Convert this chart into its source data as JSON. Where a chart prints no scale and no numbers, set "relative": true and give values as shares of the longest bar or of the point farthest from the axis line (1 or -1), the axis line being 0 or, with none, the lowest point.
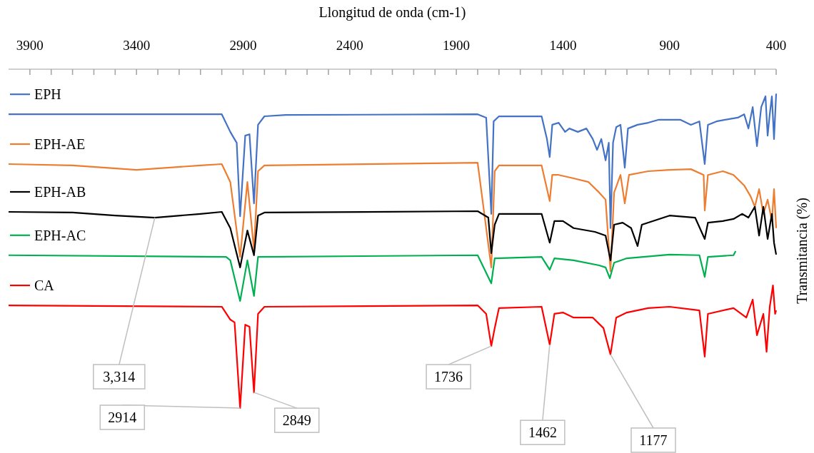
{
  "chart_data": {
    "type": "line",
    "xlabel": "Llongitud de onda (cm-1)",
    "ylabel": "Transmitancia (%)",
    "relative": true,
    "xlim": [
      4000,
      400
    ],
    "xticks": [
      3900,
      {
        "value": 3800,
        "label": null
      },
      {
        "value": 3700,
        "label": null
      },
      {
        "value": 3600,
        "label": null
      },
      {
        "value": 3500,
        "label": null
      },
      3400,
      {
        "value": 3300,
        "label": null
      },
      {
        "value": 3200,
        "label": null
      },
      {
        "value": 3100,
        "label": null
      },
      {
        "value": 3000,
        "label": null
      },
      2900,
      {
        "value": 2800,
        "label": null
      },
      {
        "value": 2700,
        "label": null
      },
      {
        "value": 2600,
        "label": null
      },
      {
        "value": 2500,
        "label": null
      },
      2400,
      {
        "value": 2300,
        "label": null
      },
      {
        "value": 2200,
        "label": null
      },
      {
        "value": 2100,
        "label": null
      },
      {
        "value": 2000,
        "label": null
      },
      1900,
      {
        "value": 1800,
        "label": null
      },
      {
        "value": 1700,
        "label": null
      },
      {
        "value": 1600,
        "label": null
      },
      {
        "value": 1500,
        "label": null
      },
      1400,
      {
        "value": 1300,
        "label": null
      },
      {
        "value": 1200,
        "label": null
      },
      {
        "value": 1100,
        "label": null
      },
      {
        "value": 1000,
        "label": null
      },
      900,
      {
        "value": 800,
        "label": null
      },
      {
        "value": 700,
        "label": null
      },
      {
        "value": 600,
        "label": null
      },
      {
        "value": 500,
        "label": null
      },
      400
    ],
    "tick_labels": "x",
    "grid": false,
    "legend": "left",
    "marker": "none",
    "line_style": "solid",
    "series": [
      {
        "name": "EPH",
        "color": "#4472c4",
        "x": [
          4000,
          3000,
          2960,
          2950,
          2930,
          2914,
          2890,
          2870,
          2849,
          2830,
          2800,
          2700,
          1800,
          1760,
          1736,
          1725,
          1700,
          1500,
          1475,
          1462,
          1450,
          1420,
          1390,
          1370,
          1330,
          1290,
          1260,
          1240,
          1220,
          1200,
          1185,
          1177,
          1165,
          1150,
          1130,
          1110,
          1095,
          1050,
          1000,
          950,
          900,
          850,
          800,
          760,
          735,
          720,
          680,
          620,
          580,
          550,
          530,
          510,
          490,
          470,
          450,
          440,
          430,
          420,
          410,
          400
        ],
        "values": [
          -0.133,
          -0.133,
          -0.185,
          -0.196,
          -0.217,
          -0.434,
          -0.196,
          -0.192,
          -0.396,
          -0.164,
          -0.139,
          -0.135,
          -0.133,
          -0.143,
          -0.427,
          -0.154,
          -0.139,
          -0.139,
          -0.206,
          -0.259,
          -0.164,
          -0.158,
          -0.185,
          -0.175,
          -0.185,
          -0.175,
          -0.206,
          -0.238,
          -0.206,
          -0.269,
          -0.217,
          -0.469,
          -0.217,
          -0.171,
          -0.164,
          -0.291,
          -0.175,
          -0.164,
          -0.158,
          -0.149,
          -0.149,
          -0.149,
          -0.164,
          -0.154,
          -0.28,
          -0.164,
          -0.154,
          -0.147,
          -0.143,
          -0.133,
          -0.175,
          -0.112,
          -0.227,
          -0.112,
          -0.08,
          -0.196,
          -0.133,
          -0.08,
          -0.206,
          -0.072
        ]
      },
      {
        "name": "EPH-AE",
        "color": "#ed7d31",
        "x": [
          4000,
          3700,
          3400,
          3100,
          3000,
          2960,
          2914,
          2880,
          2849,
          2830,
          2800,
          1800,
          1736,
          1720,
          1700,
          1500,
          1462,
          1450,
          1420,
          1350,
          1280,
          1230,
          1200,
          1177,
          1160,
          1130,
          1110,
          1090,
          1000,
          900,
          800,
          740,
          735,
          720,
          650,
          600,
          550,
          520,
          500,
          480,
          460,
          440,
          420,
          410,
          400
        ],
        "values": [
          -0.28,
          -0.284,
          -0.297,
          -0.284,
          -0.28,
          -0.333,
          -0.554,
          -0.333,
          -0.533,
          -0.301,
          -0.284,
          -0.276,
          -0.585,
          -0.301,
          -0.284,
          -0.284,
          -0.389,
          -0.312,
          -0.312,
          -0.322,
          -0.333,
          -0.364,
          -0.385,
          -0.596,
          -0.364,
          -0.312,
          -0.396,
          -0.312,
          -0.301,
          -0.297,
          -0.295,
          -0.312,
          -0.417,
          -0.312,
          -0.301,
          -0.312,
          -0.343,
          -0.375,
          -0.406,
          -0.354,
          -0.427,
          -0.385,
          -0.448,
          -0.354,
          -0.469
        ]
      },
      {
        "name": "EPH-AB",
        "color": "#000000",
        "x": [
          4000,
          3700,
          3500,
          3314,
          3100,
          3000,
          2960,
          2914,
          2880,
          2849,
          2830,
          2800,
          1800,
          1750,
          1736,
          1720,
          1700,
          1500,
          1462,
          1440,
          1400,
          1350,
          1250,
          1200,
          1177,
          1160,
          1120,
          1080,
          1050,
          1030,
          900,
          780,
          735,
          720,
          650,
          600,
          560,
          530,
          500,
          480,
          460,
          440,
          420,
          410,
          400
        ],
        "values": [
          -0.421,
          -0.423,
          -0.432,
          -0.438,
          -0.427,
          -0.421,
          -0.469,
          -0.585,
          -0.476,
          -0.549,
          -0.432,
          -0.423,
          -0.419,
          -0.438,
          -0.543,
          -0.459,
          -0.427,
          -0.427,
          -0.512,
          -0.448,
          -0.448,
          -0.469,
          -0.48,
          -0.491,
          -0.564,
          -0.459,
          -0.453,
          -0.469,
          -0.522,
          -0.459,
          -0.432,
          -0.438,
          -0.501,
          -0.453,
          -0.448,
          -0.442,
          -0.427,
          -0.438,
          -0.406,
          -0.491,
          -0.406,
          -0.501,
          -0.427,
          -0.512,
          -0.547
        ]
      },
      {
        "name": "EPH-AC",
        "color": "#00b050",
        "x": [
          4000,
          2980,
          2960,
          2914,
          2880,
          2849,
          2830,
          1800,
          1736,
          1720,
          1500,
          1462,
          1440,
          1350,
          1230,
          1200,
          1180,
          1160,
          1100,
          900,
          760,
          735,
          720,
          600,
          590
        ],
        "values": [
          -0.549,
          -0.554,
          -0.564,
          -0.684,
          -0.564,
          -0.669,
          -0.554,
          -0.549,
          -0.632,
          -0.558,
          -0.554,
          -0.592,
          -0.558,
          -0.564,
          -0.579,
          -0.585,
          -0.617,
          -0.571,
          -0.558,
          -0.547,
          -0.549,
          -0.613,
          -0.554,
          -0.549,
          -0.537
        ]
      },
      {
        "name": "CA",
        "color": "#ff0000",
        "x": [
          4000,
          3000,
          2960,
          2940,
          2914,
          2890,
          2870,
          2849,
          2830,
          2800,
          1800,
          1760,
          1736,
          1720,
          1700,
          1500,
          1462,
          1440,
          1400,
          1350,
          1260,
          1210,
          1177,
          1150,
          1100,
          1000,
          900,
          760,
          735,
          720,
          600,
          540,
          510,
          490,
          460,
          445,
          430,
          415,
          405,
          400
        ],
        "values": [
          -0.697,
          -0.701,
          -0.739,
          -0.747,
          -1,
          -0.754,
          -0.76,
          -0.954,
          -0.722,
          -0.701,
          -0.697,
          -0.722,
          -0.817,
          -0.764,
          -0.705,
          -0.701,
          -0.813,
          -0.722,
          -0.718,
          -0.733,
          -0.733,
          -0.764,
          -0.842,
          -0.733,
          -0.718,
          -0.705,
          -0.701,
          -0.712,
          -0.848,
          -0.722,
          -0.705,
          -0.733,
          -0.68,
          -0.785,
          -0.722,
          -0.834,
          -0.701,
          -0.638,
          -0.722,
          -0.712
        ]
      }
    ],
    "annotations": [
      {
        "text": "3,314",
        "x": 3314,
        "y": -0.438
      },
      {
        "text": "2914",
        "x": 2914,
        "y": -1
      },
      {
        "text": "2849",
        "x": 2849,
        "y": -0.954
      },
      {
        "text": "1736",
        "x": 1736,
        "y": -0.817
      },
      {
        "text": "1462",
        "x": 1462,
        "y": -0.813
      },
      {
        "text": "1177",
        "x": 1177,
        "y": -0.842
      }
    ]
  }
}
